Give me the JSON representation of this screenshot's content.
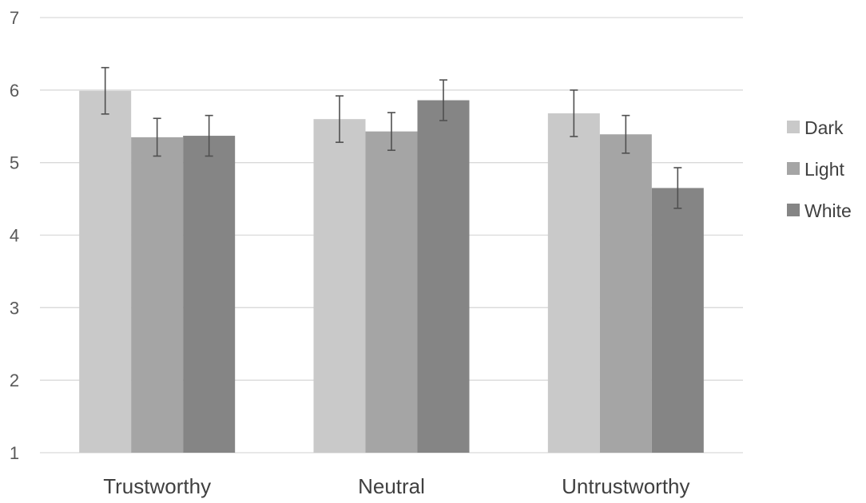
{
  "chart_data": {
    "type": "bar",
    "categories": [
      "Trustworthy",
      "Neutral",
      "Untrustworthy"
    ],
    "series": [
      {
        "name": "Dark",
        "color": "#c9c9c9",
        "values": [
          5.99,
          5.6,
          5.68
        ],
        "errors": [
          0.32,
          0.32,
          0.32
        ]
      },
      {
        "name": "Light",
        "color": "#a5a5a5",
        "values": [
          5.35,
          5.43,
          5.39
        ],
        "errors": [
          0.26,
          0.26,
          0.26
        ]
      },
      {
        "name": "White",
        "color": "#858585",
        "values": [
          5.37,
          5.86,
          4.65
        ],
        "errors": [
          0.28,
          0.28,
          0.28
        ]
      }
    ],
    "ylim": [
      1,
      7
    ],
    "yticks": [
      1,
      2,
      3,
      4,
      5,
      6,
      7
    ],
    "title": "",
    "xlabel": "",
    "ylabel": "",
    "grid": true,
    "legend_position": "right"
  }
}
